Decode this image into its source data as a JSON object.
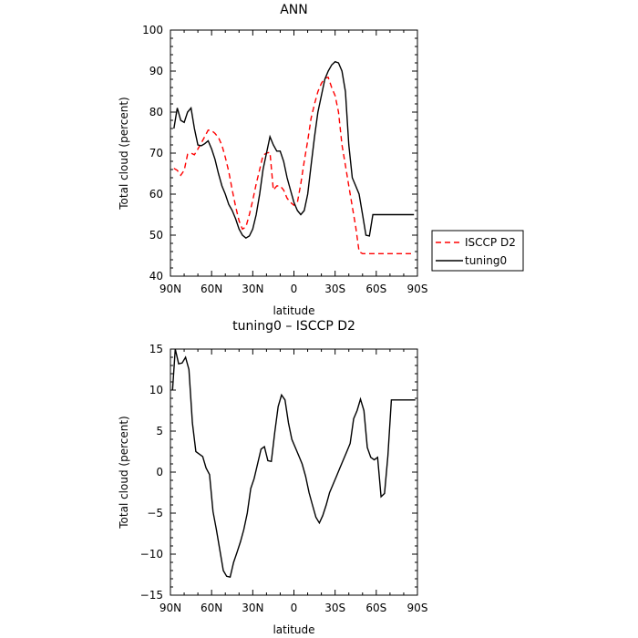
{
  "chart_data": [
    {
      "type": "line",
      "title": "ANN",
      "xlabel": "latitude",
      "ylabel": "Total cloud (percent)",
      "xlim": [
        90,
        -90
      ],
      "ylim": [
        40,
        100
      ],
      "x_tick_values": [
        90,
        60,
        30,
        0,
        -30,
        -60,
        -90
      ],
      "x_tick_labels": [
        "90N",
        "60N",
        "30N",
        "0",
        "30S",
        "60S",
        "90S"
      ],
      "y_tick_values": [
        40,
        50,
        60,
        70,
        80,
        90,
        100
      ],
      "y_tick_labels": [
        "40",
        "50",
        "60",
        "70",
        "80",
        "90",
        "100"
      ],
      "legend_position": "right",
      "series": [
        {
          "name": "ISCCP D2",
          "color": "#ff0000",
          "dash": "dashed",
          "x": [
            87.5,
            85,
            82.5,
            80,
            77.5,
            75,
            72.5,
            70,
            67.5,
            65,
            62.5,
            60,
            57.5,
            55,
            52.5,
            50,
            47.5,
            45,
            42.5,
            40,
            37.5,
            35,
            32.5,
            30,
            27.5,
            25,
            22.5,
            20,
            17.5,
            15,
            12.5,
            10,
            7.5,
            5,
            2.5,
            0,
            -2.5,
            -5,
            -7.5,
            -10,
            -12.5,
            -15,
            -17.5,
            -20,
            -22.5,
            -25,
            -27.5,
            -30,
            -32.5,
            -35,
            -37.5,
            -40,
            -42.5,
            -45,
            -47.5,
            -50,
            -52.5,
            -55,
            -57.5,
            -60,
            -62.5,
            -65,
            -67.5,
            -70,
            -72.5,
            -75,
            -77.5,
            -80,
            -82.5,
            -85,
            -87.5
          ],
          "values": [
            66.3,
            65.8,
            64.6,
            65.8,
            69.7,
            70,
            69.6,
            71,
            72.5,
            74,
            75.6,
            75.5,
            74.8,
            73.8,
            71.9,
            69,
            65.5,
            61,
            57,
            53.5,
            51.5,
            52,
            55,
            58.5,
            62.5,
            66,
            69.5,
            70,
            70.2,
            61,
            62,
            62,
            61,
            59,
            58,
            57.3,
            58,
            62.5,
            68,
            73,
            78.5,
            82,
            85,
            87,
            88.3,
            88.5,
            86,
            84,
            80,
            72,
            67,
            62,
            57,
            52,
            46,
            45.5,
            45.5,
            45.5,
            45.5,
            45.5,
            45.5,
            45.5,
            45.5,
            45.5,
            45.5,
            45.5,
            45.5,
            45.5,
            45.5,
            45.5,
            45.5
          ]
        },
        {
          "name": "tuning0",
          "color": "#000000",
          "dash": "solid",
          "x": [
            87.5,
            85,
            82.5,
            80,
            77.5,
            75,
            72.5,
            70,
            67.5,
            65,
            62.5,
            60,
            57.5,
            55,
            52.5,
            50,
            47.5,
            45,
            42.5,
            40,
            37.5,
            35,
            32.5,
            30,
            27.5,
            25,
            22.5,
            20,
            17.5,
            15,
            12.5,
            10,
            7.5,
            5,
            2.5,
            0,
            -2.5,
            -5,
            -7.5,
            -10,
            -12.5,
            -15,
            -17.5,
            -20,
            -22.5,
            -25,
            -27.5,
            -30,
            -32.5,
            -35,
            -37.5,
            -40,
            -42.5,
            -45,
            -47.5,
            -50,
            -52.5,
            -55,
            -57.5,
            -60,
            -62.5,
            -65,
            -67.5,
            -70,
            -72.5,
            -75,
            -77.5,
            -80,
            -82.5,
            -85,
            -87.5
          ],
          "values": [
            76,
            81,
            78,
            77.5,
            80,
            81,
            76,
            72,
            71.8,
            72.3,
            73,
            71,
            68.5,
            65,
            62,
            60,
            57.5,
            56,
            54,
            51.5,
            50,
            49.3,
            49.8,
            51.5,
            55,
            60,
            66,
            70,
            74,
            72,
            70.5,
            70.5,
            68,
            64,
            61,
            58,
            56,
            55,
            56,
            60,
            67,
            74,
            80,
            84,
            88,
            90,
            91.5,
            92.3,
            92,
            90,
            85,
            72,
            64,
            62,
            60,
            55,
            50,
            49.8,
            55,
            55,
            55,
            55,
            55,
            55,
            55,
            55,
            55,
            55,
            55,
            55,
            55
          ]
        }
      ]
    },
    {
      "type": "line",
      "title": "tuning0 – ISCCP D2",
      "xlabel": "latitude",
      "ylabel": "Total cloud (percent)",
      "xlim": [
        90,
        -90
      ],
      "ylim": [
        -15,
        15
      ],
      "x_tick_values": [
        90,
        60,
        30,
        0,
        -30,
        -60,
        -90
      ],
      "x_tick_labels": [
        "90N",
        "60N",
        "30N",
        "0",
        "30S",
        "60S",
        "90S"
      ],
      "y_tick_values": [
        -15,
        -10,
        -5,
        0,
        5,
        10,
        15
      ],
      "y_tick_labels": [
        "−15",
        "−10",
        "−5",
        "0",
        "5",
        "10",
        "15"
      ],
      "series": [
        {
          "color": "#000000",
          "dash": "solid",
          "x": [
            88.5,
            86.5,
            84,
            81.5,
            79,
            76.5,
            74,
            71.5,
            69,
            66.5,
            64,
            61.5,
            59,
            56.5,
            54,
            51.5,
            49,
            46.5,
            44,
            41.5,
            39,
            36.5,
            34,
            31.5,
            29,
            26.5,
            24,
            21.5,
            19,
            16.5,
            14,
            11.5,
            9,
            6.5,
            4,
            1.5,
            -1,
            -3.5,
            -6,
            -8.5,
            -11,
            -13.5,
            -16,
            -18.5,
            -21,
            -23.5,
            -26,
            -28.5,
            -31,
            -33.5,
            -36,
            -38.5,
            -41,
            -43.5,
            -46,
            -48.5,
            -51,
            -53.5,
            -56,
            -58.5,
            -61,
            -63.5,
            -66,
            -68.5,
            -71,
            -73.5,
            -76,
            -78.5,
            -81,
            -83.5,
            -86,
            -88.5
          ],
          "values": [
            10,
            15,
            13.2,
            13.3,
            14,
            12.5,
            6,
            2.5,
            2.2,
            1.9,
            0.5,
            -0.3,
            -4.8,
            -7,
            -9.5,
            -12,
            -12.7,
            -12.8,
            -11,
            -9.8,
            -8.5,
            -7,
            -5,
            -2,
            -0.8,
            1,
            2.8,
            3.1,
            1.4,
            1.3,
            4.8,
            8,
            9.4,
            8.8,
            6,
            4,
            3,
            2,
            1,
            -0.5,
            -2.5,
            -4,
            -5.5,
            -6.2,
            -5.3,
            -4,
            -2.5,
            -1.5,
            -0.5,
            0.5,
            1.5,
            2.5,
            3.5,
            6.5,
            7.5,
            8.9,
            7.5,
            3,
            1.8,
            1.5,
            1.8,
            -3,
            -2.6,
            2,
            8.8,
            8.8,
            8.8,
            8.8,
            8.8,
            8.8,
            8.8,
            8.8
          ]
        }
      ]
    }
  ]
}
